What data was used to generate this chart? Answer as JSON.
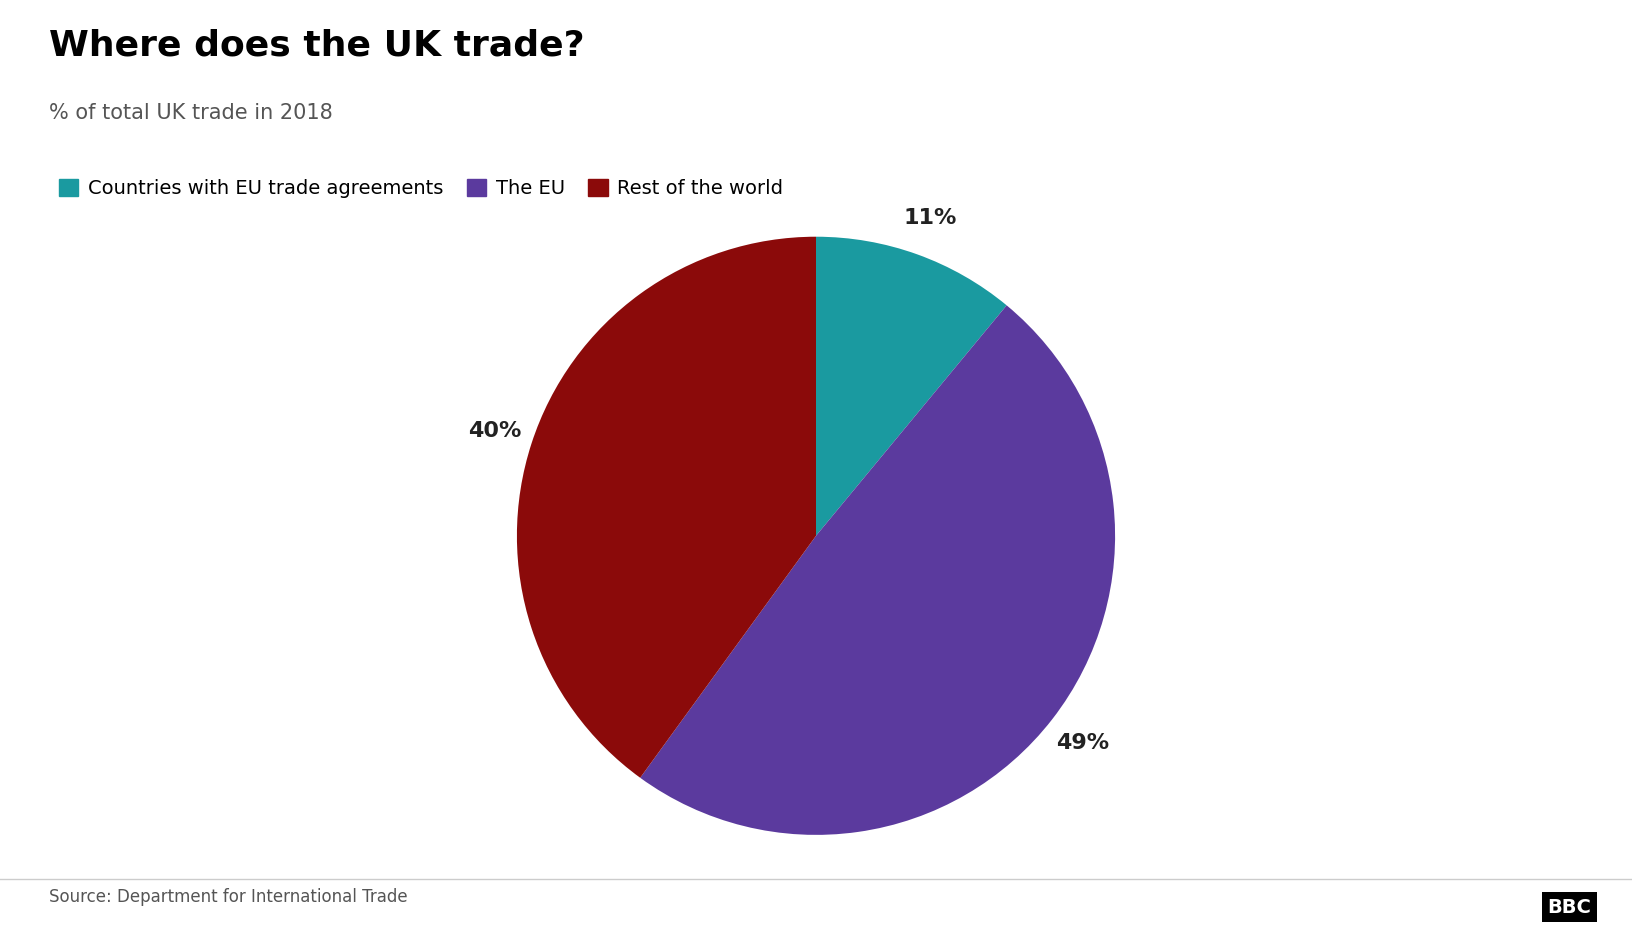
{
  "title": "Where does the UK trade?",
  "subtitle": "% of total UK trade in 2018",
  "source": "Source: Department for International Trade",
  "slices": [
    11,
    49,
    40
  ],
  "labels": [
    "Countries with EU trade agreements",
    "The EU",
    "Rest of the world"
  ],
  "colors": [
    "#1a9aa0",
    "#5b3a9e",
    "#8b0a0a"
  ],
  "pct_labels": [
    "11%",
    "49%",
    "40%"
  ],
  "startangle": 90,
  "background_color": "#ffffff",
  "title_fontsize": 26,
  "subtitle_fontsize": 15,
  "legend_fontsize": 14,
  "label_fontsize": 16,
  "source_fontsize": 12,
  "bbc_fontsize": 14
}
